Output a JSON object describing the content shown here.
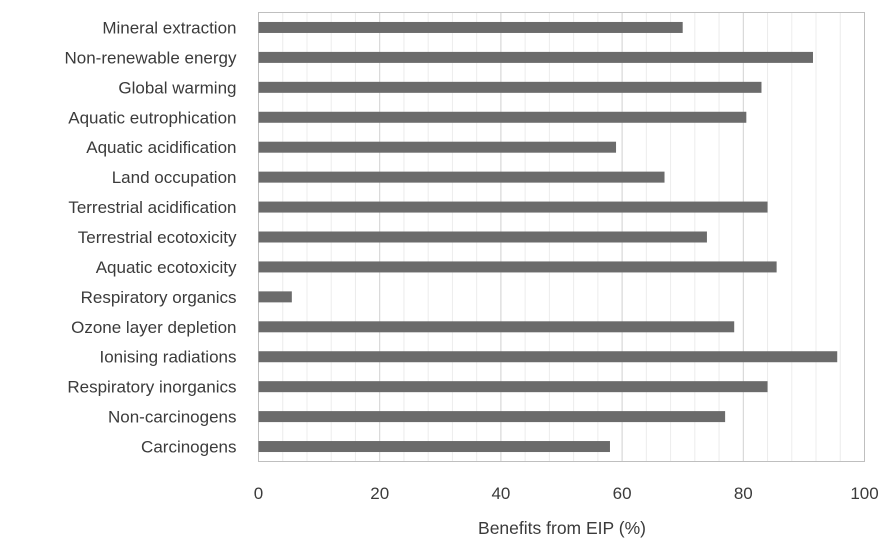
{
  "chart_data": {
    "type": "bar",
    "orientation": "horizontal",
    "categories": [
      "Mineral extraction",
      "Non-renewable energy",
      "Global warming",
      "Aquatic eutrophication",
      "Aquatic acidification",
      "Land occupation",
      "Terrestrial acidification",
      "Terrestrial ecotoxicity",
      "Aquatic ecotoxicity",
      "Respiratory organics",
      "Ozone layer depletion",
      "Ionising radiations",
      "Respiratory inorganics",
      "Non-carcinogens",
      "Carcinogens"
    ],
    "values": [
      70,
      91.5,
      83,
      80.5,
      59,
      67,
      84,
      74,
      85.5,
      5.5,
      78.5,
      95.5,
      84,
      77,
      58
    ],
    "title": "",
    "xlabel": "Benefits from EIP (%)",
    "ylabel": "",
    "xlim": [
      0,
      100
    ],
    "xticks": [
      "0",
      "20",
      "40",
      "60",
      "80",
      "100"
    ],
    "grid": "vertical major and minor",
    "bar_color": "#6b6b6b",
    "legend": "none"
  }
}
